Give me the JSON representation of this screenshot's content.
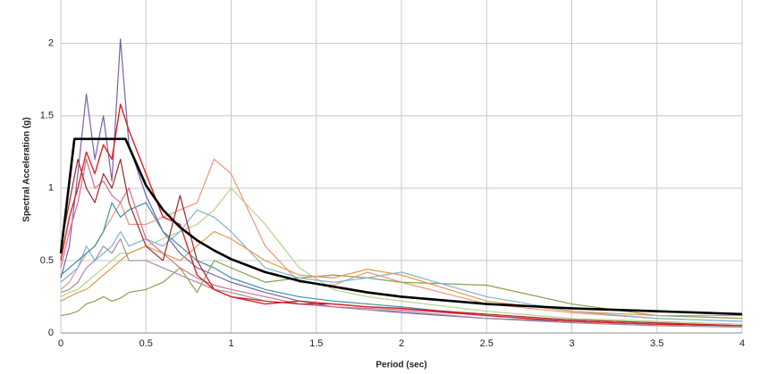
{
  "chart_data": {
    "type": "line",
    "xlabel": "Period (sec)",
    "ylabel": "Spectral Acceleration (g)",
    "x": [
      0,
      0.05,
      0.1,
      0.15,
      0.2,
      0.25,
      0.3,
      0.35,
      0.4,
      0.5,
      0.6,
      0.7,
      0.8,
      0.9,
      1.0,
      1.2,
      1.4,
      1.6,
      1.8,
      2.0,
      2.5,
      3.0,
      3.5,
      4.0
    ],
    "series": [
      {
        "color": "#7b5ea7",
        "line_width": 1.2,
        "values": [
          0.38,
          0.6,
          1.1,
          1.65,
          1.2,
          1.5,
          1.05,
          2.03,
          1.3,
          0.95,
          0.7,
          0.55,
          0.45,
          0.4,
          0.35,
          0.28,
          0.22,
          0.18,
          0.16,
          0.14,
          0.1,
          0.08,
          0.06,
          0.05
        ]
      },
      {
        "color": "#e8967a",
        "line_width": 1.2,
        "values": [
          0.3,
          0.35,
          0.45,
          0.55,
          0.6,
          0.7,
          0.8,
          0.9,
          0.75,
          0.75,
          0.8,
          0.85,
          0.9,
          1.2,
          1.1,
          0.6,
          0.35,
          0.33,
          0.42,
          0.35,
          0.2,
          0.14,
          0.1,
          0.08
        ]
      },
      {
        "color": "#8aa050",
        "line_width": 1.2,
        "values": [
          0.12,
          0.13,
          0.15,
          0.2,
          0.22,
          0.25,
          0.22,
          0.24,
          0.28,
          0.3,
          0.35,
          0.45,
          0.28,
          0.5,
          0.45,
          0.35,
          0.38,
          0.4,
          0.38,
          0.35,
          0.33,
          0.2,
          0.12,
          0.1
        ]
      },
      {
        "color": "#b5d38a",
        "line_width": 1.2,
        "values": [
          0.25,
          0.28,
          0.3,
          0.35,
          0.4,
          0.45,
          0.5,
          0.55,
          0.55,
          0.6,
          0.65,
          0.7,
          0.75,
          0.85,
          1.0,
          0.75,
          0.45,
          0.3,
          0.25,
          0.22,
          0.15,
          0.1,
          0.08,
          0.06
        ]
      },
      {
        "color": "#7fb2d8",
        "line_width": 1.2,
        "values": [
          0.35,
          0.4,
          0.45,
          0.6,
          0.5,
          0.55,
          0.6,
          0.7,
          0.6,
          0.65,
          0.6,
          0.7,
          0.85,
          0.8,
          0.7,
          0.45,
          0.38,
          0.35,
          0.38,
          0.42,
          0.25,
          0.15,
          0.1,
          0.08
        ]
      },
      {
        "color": "#e39a4a",
        "line_width": 1.2,
        "values": [
          0.22,
          0.25,
          0.28,
          0.3,
          0.35,
          0.4,
          0.45,
          0.5,
          0.55,
          0.6,
          0.55,
          0.5,
          0.6,
          0.7,
          0.65,
          0.5,
          0.4,
          0.38,
          0.44,
          0.4,
          0.22,
          0.15,
          0.12,
          0.12
        ]
      },
      {
        "color": "#3c8fa6",
        "line_width": 1.2,
        "values": [
          0.4,
          0.45,
          0.5,
          0.55,
          0.6,
          0.7,
          0.9,
          0.8,
          0.85,
          0.9,
          0.7,
          0.6,
          0.5,
          0.45,
          0.38,
          0.3,
          0.25,
          0.22,
          0.2,
          0.18,
          0.12,
          0.08,
          0.06,
          0.05
        ]
      },
      {
        "color": "#a48aa8",
        "line_width": 1.2,
        "values": [
          0.28,
          0.3,
          0.35,
          0.45,
          0.5,
          0.6,
          0.55,
          0.65,
          0.5,
          0.5,
          0.45,
          0.4,
          0.35,
          0.3,
          0.28,
          0.22,
          0.2,
          0.18,
          0.16,
          0.15,
          0.1,
          0.07,
          0.05,
          0.04
        ]
      },
      {
        "color": "#d06f8a",
        "line_width": 1.2,
        "values": [
          0.45,
          0.7,
          0.9,
          1.2,
          1.0,
          1.05,
          0.95,
          0.9,
          1.0,
          0.65,
          0.55,
          0.45,
          0.38,
          0.33,
          0.3,
          0.25,
          0.2,
          0.18,
          0.17,
          0.16,
          0.12,
          0.08,
          0.06,
          0.05
        ]
      },
      {
        "color": "#a02828",
        "line_width": 1.2,
        "values": [
          0.6,
          0.9,
          1.2,
          1.0,
          0.9,
          1.1,
          1.0,
          1.2,
          0.9,
          0.6,
          0.5,
          0.95,
          0.5,
          0.3,
          0.25,
          0.22,
          0.2,
          0.2,
          0.18,
          0.17,
          0.13,
          0.09,
          0.07,
          0.05
        ]
      },
      {
        "color": "#e02020",
        "line_width": 1.4,
        "values": [
          0.5,
          0.8,
          1.0,
          1.25,
          1.1,
          1.3,
          1.2,
          1.58,
          1.4,
          1.1,
          0.8,
          0.75,
          0.4,
          0.3,
          0.25,
          0.2,
          0.22,
          0.2,
          0.18,
          0.17,
          0.12,
          0.08,
          0.06,
          0.05
        ]
      },
      {
        "color": "#000000",
        "line_width": 2.6,
        "x": [
          0,
          0.08,
          0.38,
          0.5,
          0.6,
          0.7,
          0.8,
          0.9,
          1.0,
          1.2,
          1.4,
          1.6,
          1.8,
          2.0,
          2.5,
          3.0,
          3.5,
          4.0
        ],
        "values": [
          0.55,
          1.34,
          1.34,
          1.02,
          0.85,
          0.73,
          0.64,
          0.57,
          0.51,
          0.42,
          0.36,
          0.32,
          0.28,
          0.25,
          0.2,
          0.17,
          0.15,
          0.13
        ]
      }
    ],
    "xlim": [
      0,
      4
    ],
    "xticks": [
      0,
      0.5,
      1,
      1.5,
      2,
      2.5,
      3,
      3.5,
      4
    ],
    "ylim": [
      0,
      2.3
    ],
    "yticks": [
      0,
      0.5,
      1,
      1.5,
      2
    ],
    "grid": true
  }
}
